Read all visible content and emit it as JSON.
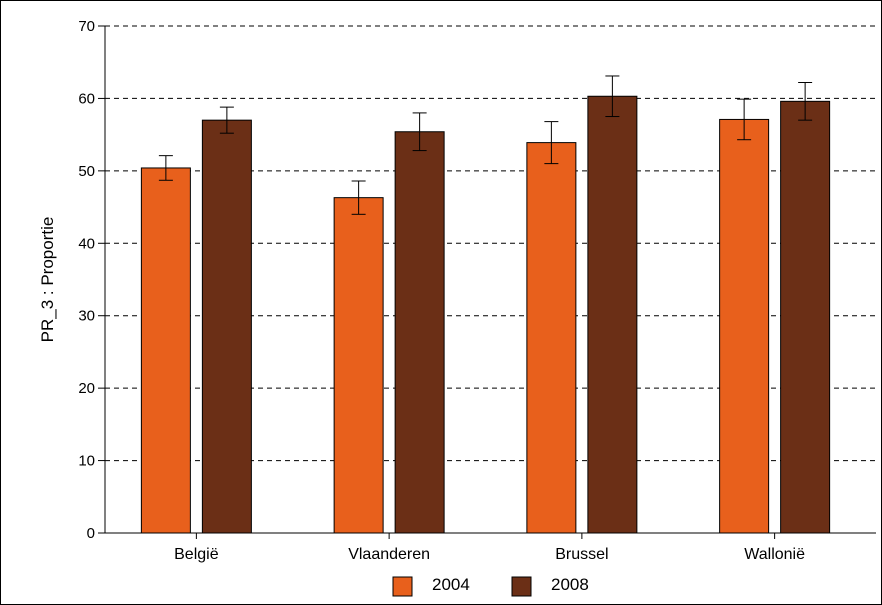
{
  "chart_data": {
    "type": "bar",
    "title": "",
    "xlabel": "",
    "ylabel": "PR_3 : Proportie",
    "ylim": [
      0,
      70
    ],
    "yticks": [
      0,
      10,
      20,
      30,
      40,
      50,
      60,
      70
    ],
    "grid": true,
    "legend_position": "bottom",
    "categories": [
      "België",
      "Vlaanderen",
      "Brussel",
      "Wallonië"
    ],
    "series": [
      {
        "name": "2004",
        "color": "#e8601c",
        "values": [
          50.4,
          46.3,
          53.9,
          57.1
        ],
        "error_low": [
          48.7,
          44.0,
          51.0,
          54.3
        ],
        "error_high": [
          52.1,
          48.6,
          56.8,
          59.9
        ]
      },
      {
        "name": "2008",
        "color": "#6b2f16",
        "values": [
          57.0,
          55.4,
          60.3,
          59.6
        ],
        "error_low": [
          55.2,
          52.8,
          57.5,
          57.0
        ],
        "error_high": [
          58.8,
          58.0,
          63.1,
          62.2
        ]
      }
    ]
  }
}
